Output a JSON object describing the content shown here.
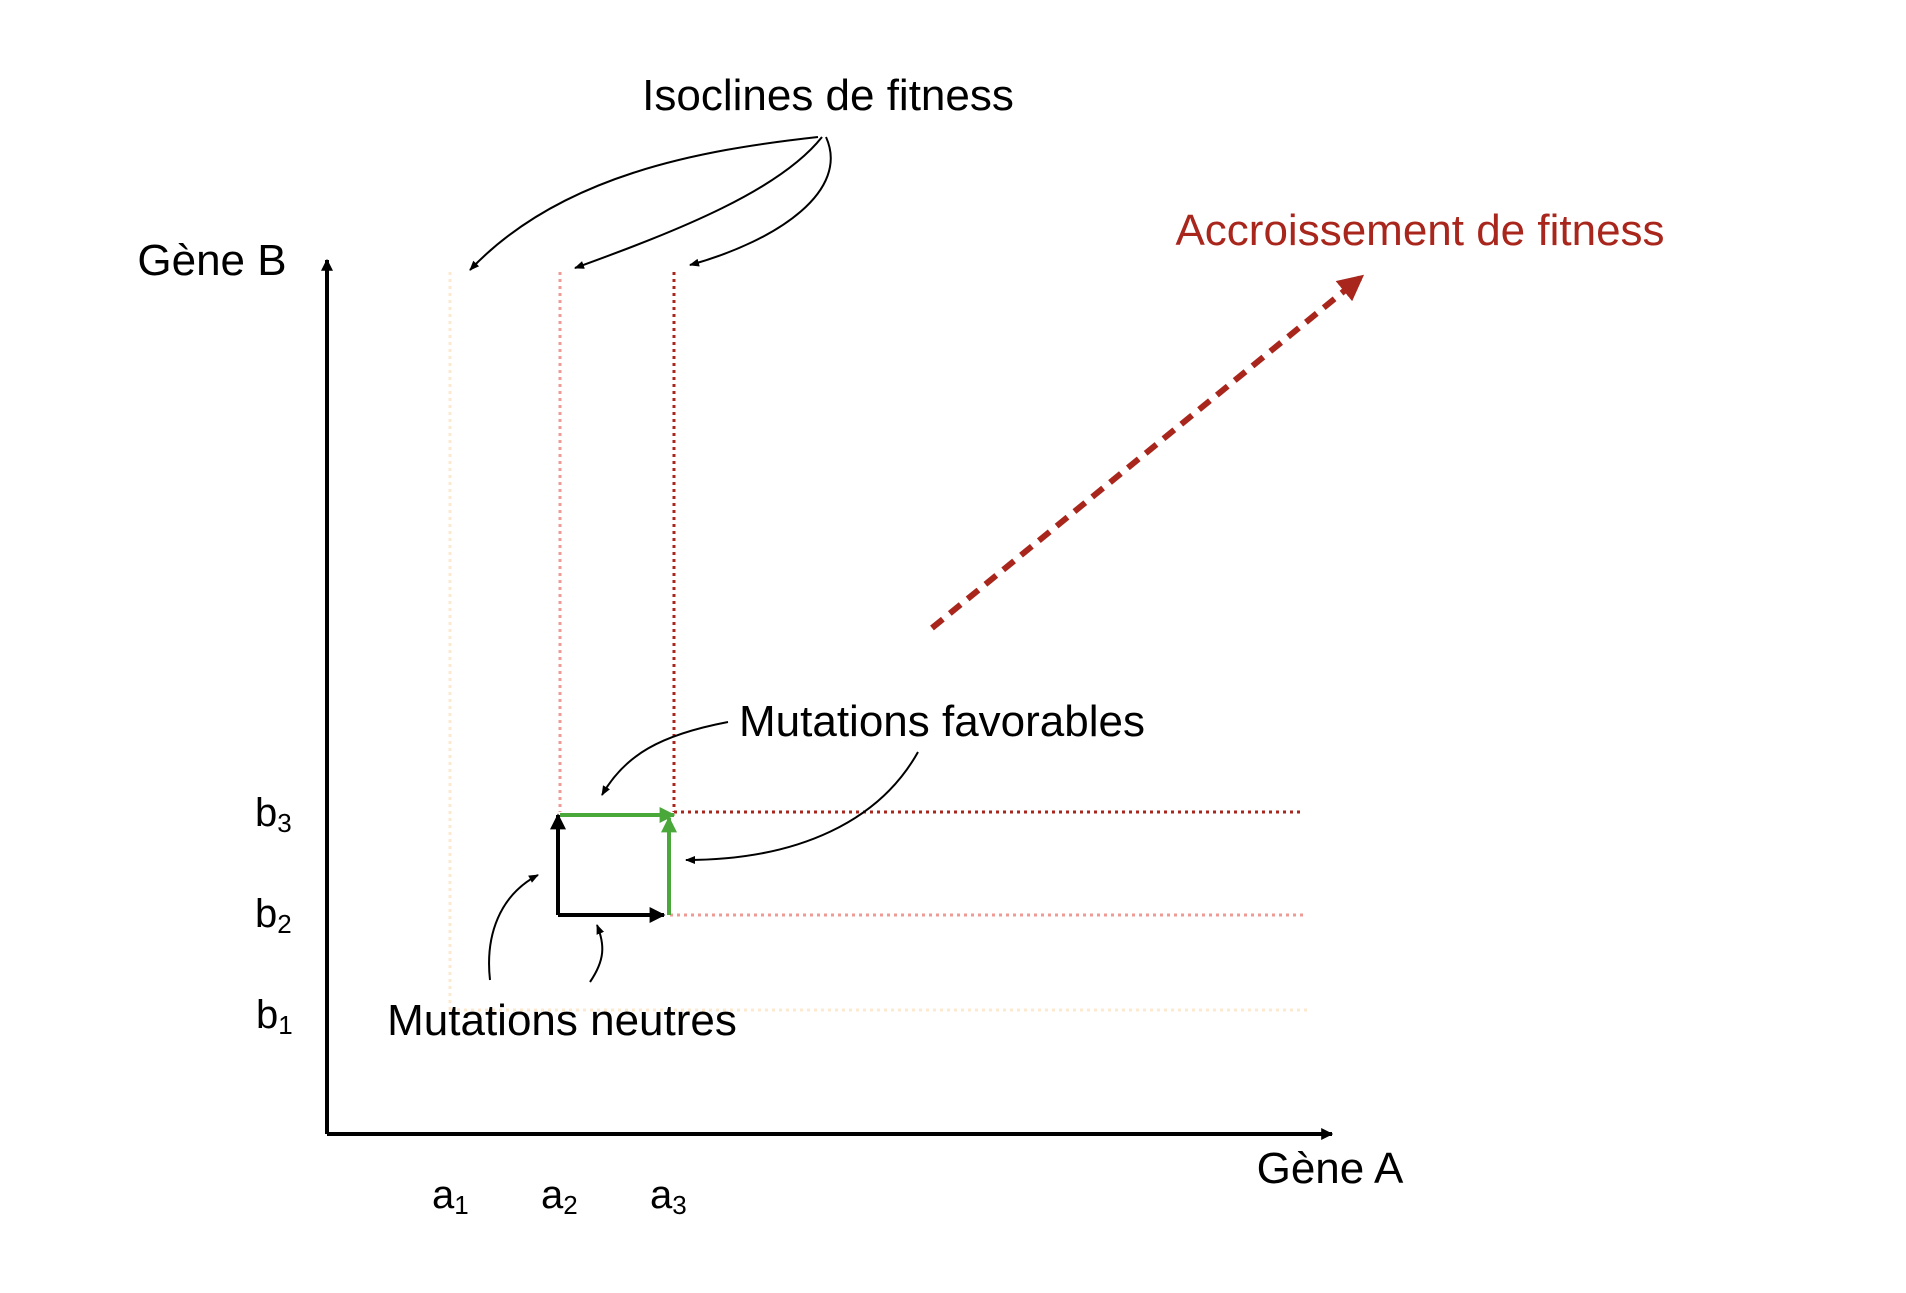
{
  "diagram": {
    "title": "Isoclines de fitness",
    "fitness_increase_label": "Accroissement de fitness",
    "y_axis_label": "Gène B",
    "x_axis_label": "Gène A",
    "favorable_label": "Mutations favorables",
    "neutral_label": "Mutations neutres",
    "x_ticks": [
      {
        "base": "a",
        "sub": "1"
      },
      {
        "base": "a",
        "sub": "2"
      },
      {
        "base": "a",
        "sub": "3"
      }
    ],
    "y_ticks": [
      {
        "base": "b",
        "sub": "1"
      },
      {
        "base": "b",
        "sub": "2"
      },
      {
        "base": "b",
        "sub": "3"
      }
    ],
    "colors": {
      "axis": "#000000",
      "isocline_1": "#fde9cf",
      "isocline_2": "#ee9b96",
      "isocline_3": "#a8261c",
      "favorable_arrow": "#4aa83a",
      "neutral_arrow": "#000000",
      "fitness_arrow": "#a8261c",
      "annotation": "#000000"
    }
  }
}
